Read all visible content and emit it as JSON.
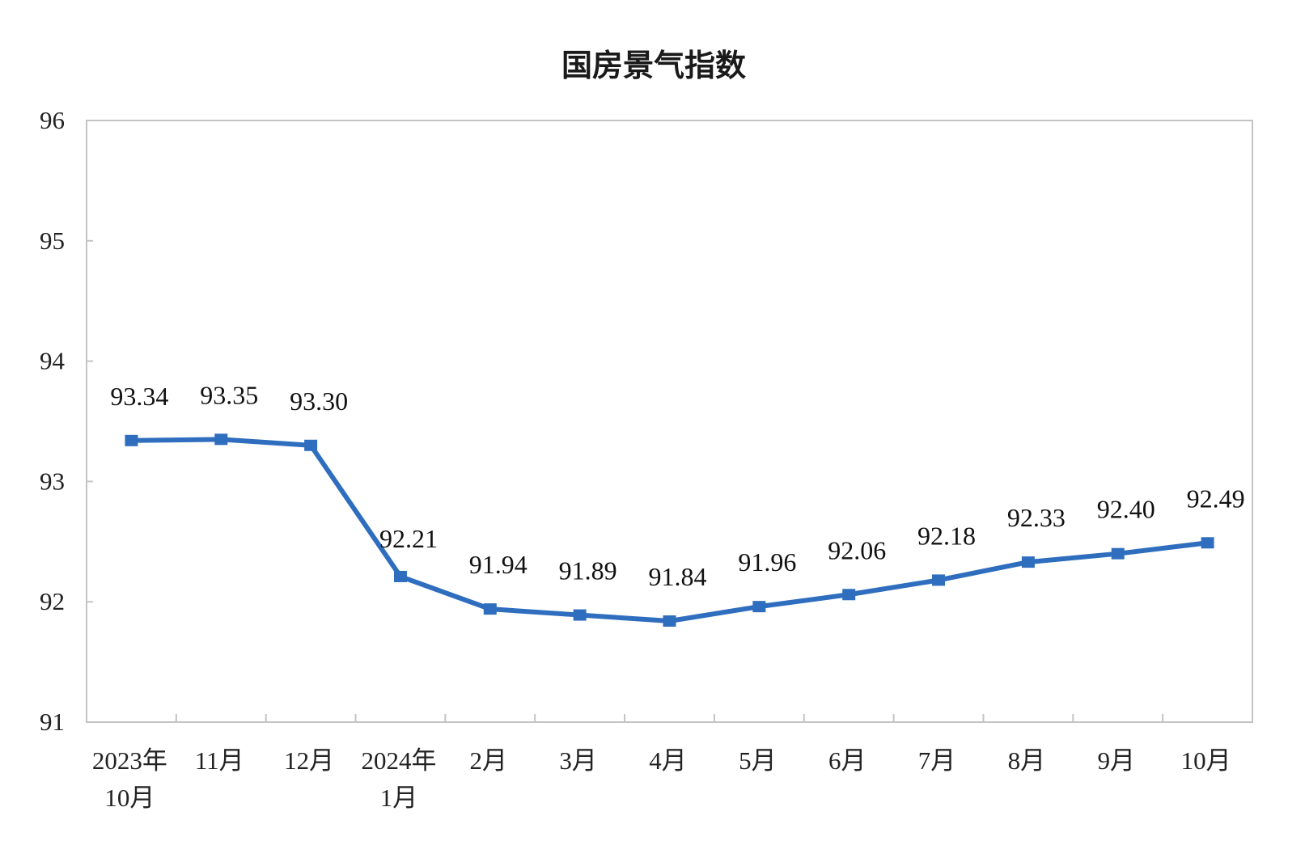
{
  "chart_data": {
    "type": "line",
    "title": "国房景气指数",
    "xlabel": "",
    "ylabel": "",
    "categories": [
      [
        "2023年",
        "10月"
      ],
      [
        "11月"
      ],
      [
        "12月"
      ],
      [
        "2024年",
        "1月"
      ],
      [
        "2月"
      ],
      [
        "3月"
      ],
      [
        "4月"
      ],
      [
        "5月"
      ],
      [
        "6月"
      ],
      [
        "7月"
      ],
      [
        "8月"
      ],
      [
        "9月"
      ],
      [
        "10月"
      ]
    ],
    "values": [
      93.34,
      93.35,
      93.3,
      92.21,
      91.94,
      91.89,
      91.84,
      91.96,
      92.06,
      92.18,
      92.33,
      92.4,
      92.49
    ],
    "data_labels": [
      "93.34",
      "93.35",
      "93.30",
      "92.21",
      "91.94",
      "91.89",
      "91.84",
      "91.96",
      "92.06",
      "92.18",
      "92.33",
      "92.40",
      "92.49"
    ],
    "ylim": [
      91,
      96
    ],
    "yticks": [
      "91",
      "92",
      "93",
      "94",
      "95",
      "96"
    ],
    "grid": false,
    "legend": "none",
    "marker": "square",
    "line_color": "#2f6ebf"
  }
}
